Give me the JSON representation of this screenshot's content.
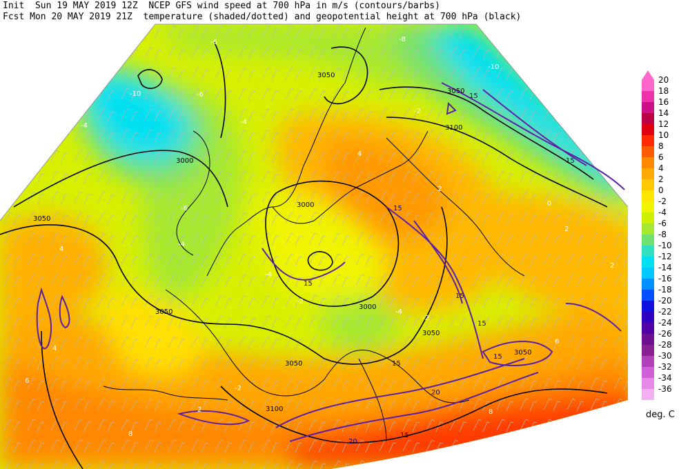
{
  "header": {
    "line1": "Init  Sun 19 MAY 2019 12Z  NCEP GFS wind speed at 700 hPa in m/s (contours/barbs)",
    "line2": "Fcst Mon 20 MAY 2019 21Z  temperature (shaded/dotted) and geopotential height at 700 hPa (black)"
  },
  "legend": {
    "units": "deg. C",
    "levels": [
      {
        "value": "20",
        "color": "#ff66cc"
      },
      {
        "value": "18",
        "color": "#ee33aa"
      },
      {
        "value": "16",
        "color": "#cc1188"
      },
      {
        "value": "14",
        "color": "#bb0044"
      },
      {
        "value": "12",
        "color": "#e00010"
      },
      {
        "value": "10",
        "color": "#ff2a00"
      },
      {
        "value": "8",
        "color": "#ff5a00"
      },
      {
        "value": "6",
        "color": "#ff8800"
      },
      {
        "value": "4",
        "color": "#ffa800"
      },
      {
        "value": "2",
        "color": "#ffc800"
      },
      {
        "value": "0",
        "color": "#ffe600"
      },
      {
        "value": "-2",
        "color": "#f0f400"
      },
      {
        "value": "-4",
        "color": "#ccf000"
      },
      {
        "value": "-6",
        "color": "#a6e830"
      },
      {
        "value": "-8",
        "color": "#70e070"
      },
      {
        "value": "-10",
        "color": "#30e0c0"
      },
      {
        "value": "-12",
        "color": "#00e0f0"
      },
      {
        "value": "-14",
        "color": "#00c8ff"
      },
      {
        "value": "-16",
        "color": "#0090ff"
      },
      {
        "value": "-18",
        "color": "#0050ff"
      },
      {
        "value": "-20",
        "color": "#1010e0"
      },
      {
        "value": "-22",
        "color": "#3000c0"
      },
      {
        "value": "-24",
        "color": "#5000a8"
      },
      {
        "value": "-26",
        "color": "#6a1090"
      },
      {
        "value": "-28",
        "color": "#882090"
      },
      {
        "value": "-30",
        "color": "#b040b8"
      },
      {
        "value": "-32",
        "color": "#d060d8"
      },
      {
        "value": "-34",
        "color": "#e888e8"
      },
      {
        "value": "-36",
        "color": "#f4b0f0"
      }
    ]
  },
  "contour_labels": {
    "height": [
      "3050",
      "3000",
      "3050",
      "3050",
      "3000",
      "3000",
      "3050",
      "3050",
      "3100",
      "3100",
      "3050",
      "3050"
    ],
    "wind": [
      "15",
      "15",
      "15",
      "15",
      "15",
      "15",
      "15",
      "20",
      "15",
      "15",
      "20"
    ],
    "temperature": [
      "-10",
      "-6",
      "-4",
      "-4",
      "-6",
      "-8",
      "-10",
      "-6",
      "-4",
      "-2",
      "-4",
      "-2",
      "2",
      "4",
      "2",
      "0",
      "4",
      "6",
      "-2",
      "-2",
      "-4",
      "2",
      "2",
      "4",
      "6",
      "8",
      "8"
    ]
  }
}
